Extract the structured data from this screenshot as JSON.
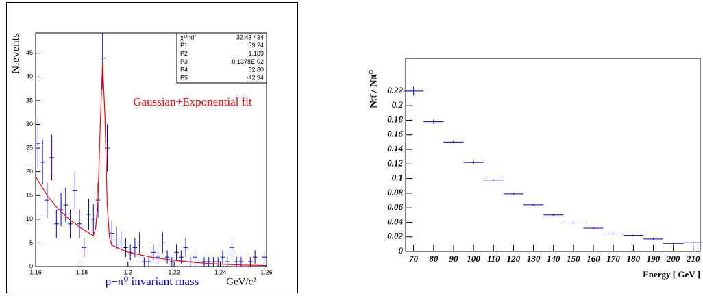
{
  "chart_data": [
    {
      "type": "errorbar",
      "y_label": "N.events",
      "x_label": "p−π⁰ invariant mass",
      "x_unit": "GeV/c²",
      "annotation": "Gaussian+Exponential fit",
      "stats": [
        [
          "χ²/ndf",
          "32.43  /  34"
        ],
        [
          "P1",
          "39.24"
        ],
        [
          "P2",
          "1.189"
        ],
        [
          "P3",
          "0.1378E-02"
        ],
        [
          "P4",
          "52.80"
        ],
        [
          "P5",
          "-42.94"
        ]
      ],
      "color": "#0000cc",
      "x": [
        1.161,
        1.163,
        1.165,
        1.167,
        1.169,
        1.171,
        1.173,
        1.175,
        1.177,
        1.179,
        1.181,
        1.183,
        1.185,
        1.187,
        1.189,
        1.191,
        1.193,
        1.195,
        1.197,
        1.199,
        1.201,
        1.203,
        1.205,
        1.207,
        1.209,
        1.211,
        1.213,
        1.215,
        1.217,
        1.219,
        1.221,
        1.223,
        1.225,
        1.227,
        1.229,
        1.231,
        1.233,
        1.235,
        1.237,
        1.239,
        1.241,
        1.243,
        1.245,
        1.247,
        1.249,
        1.251,
        1.253,
        1.255,
        1.257,
        1.259
      ],
      "values": [
        26,
        22,
        14,
        23,
        9,
        12,
        13,
        9,
        16,
        9,
        4,
        11,
        10,
        14,
        44,
        25,
        7,
        6,
        5,
        4,
        3,
        4,
        5,
        1,
        1,
        3,
        2,
        5,
        2,
        1,
        3,
        2,
        4,
        1,
        2,
        0,
        1,
        1,
        1,
        1,
        2,
        1,
        4,
        1,
        1,
        0,
        1,
        2,
        0,
        2
      ],
      "errors": [
        5.1,
        4.7,
        3.7,
        4.8,
        3,
        3.5,
        3.6,
        3,
        4,
        3,
        2,
        3.3,
        3.2,
        3.7,
        6.6,
        5,
        2.6,
        2.4,
        2.2,
        2,
        1.7,
        2,
        2.2,
        1,
        1,
        1.7,
        1.4,
        2.2,
        1.4,
        1,
        1.7,
        1.4,
        2,
        1,
        1.4,
        0,
        1,
        1,
        1,
        1,
        1.4,
        1,
        2,
        1,
        1,
        0,
        1,
        1.4,
        0,
        1.4
      ],
      "x_error": 0.001,
      "fit": {
        "color": "#ff0000",
        "x": [
          1.16,
          1.165,
          1.17,
          1.175,
          1.18,
          1.185,
          1.186,
          1.187,
          1.188,
          1.189,
          1.19,
          1.191,
          1.192,
          1.193,
          1.2,
          1.21,
          1.22,
          1.23,
          1.24,
          1.25,
          1.26
        ],
        "values": [
          19,
          15,
          12,
          9.8,
          8,
          6.5,
          8,
          14,
          30,
          43,
          32,
          13,
          6,
          4.5,
          3,
          2,
          1.3,
          0.8,
          0.5,
          0.3,
          0.2
        ]
      },
      "xlim": [
        1.16,
        1.26
      ],
      "ylim": [
        0,
        49.3
      ],
      "xticks": [
        1.16,
        1.18,
        1.2,
        1.22,
        1.24,
        1.26
      ],
      "yticks": [
        0,
        5,
        10,
        15,
        20,
        25,
        30,
        35,
        40,
        45
      ]
    },
    {
      "type": "errorbar",
      "y_label": "Nπ̄ / Nπ⁰",
      "x_label": "Energy [ GeV ]",
      "color": "#0000cc",
      "x": [
        70,
        80,
        90,
        100,
        110,
        120,
        130,
        140,
        150,
        160,
        170,
        180,
        190,
        200,
        210
      ],
      "values": [
        0.22,
        0.178,
        0.15,
        0.122,
        0.098,
        0.079,
        0.064,
        0.05,
        0.039,
        0.032,
        0.024,
        0.022,
        0.017,
        0.011,
        0.012
      ],
      "errors": [
        0.006,
        0.003,
        0.002,
        0.002,
        0.001,
        0.001,
        0.001,
        0.001,
        0.001,
        0.001,
        0.001,
        0.001,
        0.001,
        0.001,
        0.001
      ],
      "x_error": 5,
      "xlim": [
        66,
        213.5
      ],
      "ylim": [
        0,
        0.265
      ],
      "xticks": [
        70,
        80,
        90,
        100,
        110,
        120,
        130,
        140,
        150,
        160,
        170,
        180,
        190,
        200,
        210
      ],
      "yticks": [
        0,
        0.02,
        0.04,
        0.06,
        0.08,
        0.1,
        0.12,
        0.14,
        0.16,
        0.18,
        0.2,
        0.22
      ]
    }
  ]
}
